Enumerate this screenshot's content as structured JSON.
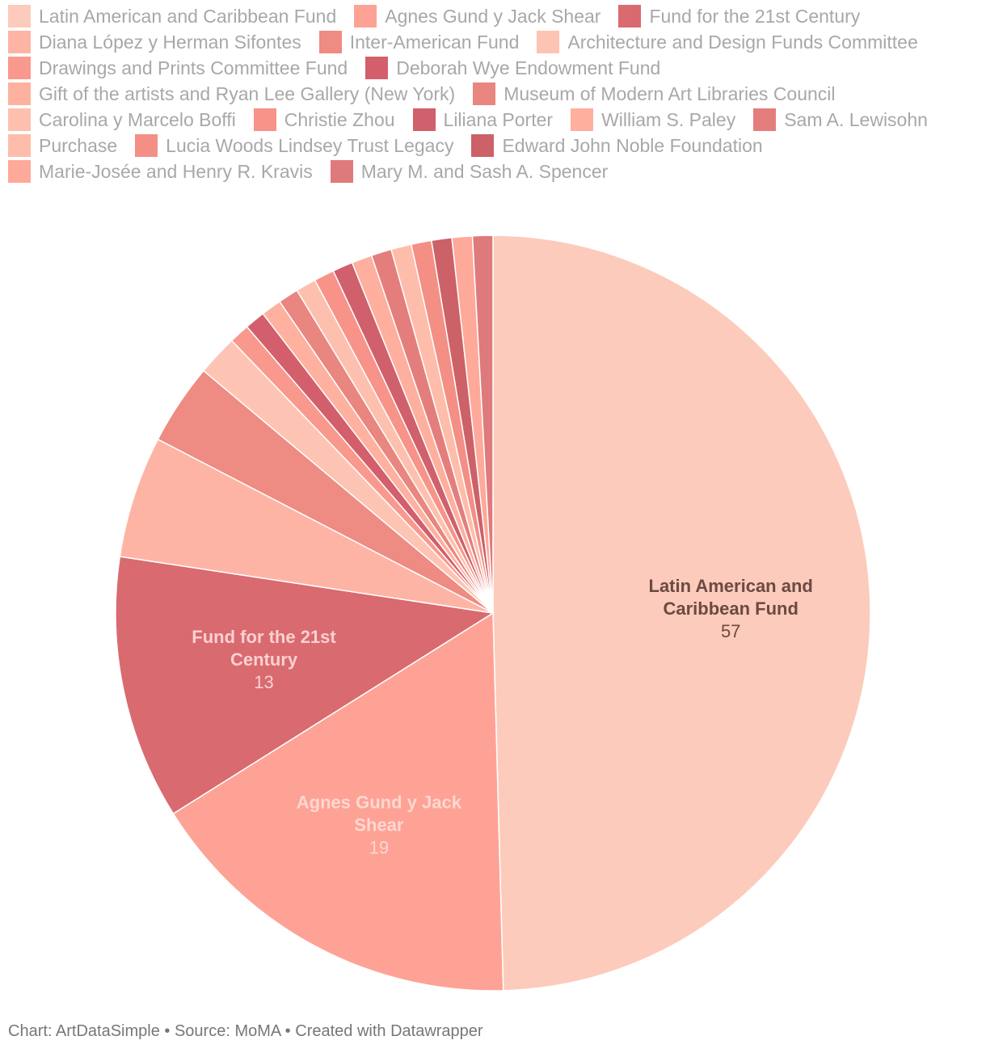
{
  "chart_data": {
    "type": "pie",
    "title": "",
    "slices": [
      {
        "name": "Latin American and Caribbean Fund",
        "value": 57,
        "color": "#fdcbbb"
      },
      {
        "name": "Agnes Gund y Jack Shear",
        "value": 19,
        "color": "#fea296"
      },
      {
        "name": "Fund for the 21st Century",
        "value": 13,
        "color": "#d96a70"
      },
      {
        "name": "Diana López y Herman Sifontes",
        "value": 6,
        "color": "#feb4a4"
      },
      {
        "name": "Inter-American Fund",
        "value": 4,
        "color": "#ee8b82"
      },
      {
        "name": "Architecture and Design Funds Committee",
        "value": 2,
        "color": "#fec4b3"
      },
      {
        "name": "Drawings and Prints Committee Fund",
        "value": 1,
        "color": "#f9998e"
      },
      {
        "name": "Deborah Wye Endowment Fund",
        "value": 1,
        "color": "#d35f6d"
      },
      {
        "name": "Gift of the artists and Ryan Lee Gallery (New York)",
        "value": 1,
        "color": "#feb19f"
      },
      {
        "name": "Museum of Modern Art Libraries Council",
        "value": 1,
        "color": "#e8867f"
      },
      {
        "name": "Carolina y Marcelo Boffi",
        "value": 1,
        "color": "#fec0ae"
      },
      {
        "name": "Christie Zhou",
        "value": 1,
        "color": "#f79389"
      },
      {
        "name": "Liliana Porter",
        "value": 1,
        "color": "#d0606b"
      },
      {
        "name": "William S. Paley",
        "value": 1,
        "color": "#feaf9e"
      },
      {
        "name": "Sam A. Lewisohn",
        "value": 1,
        "color": "#e47e7c"
      },
      {
        "name": "Purchase",
        "value": 1,
        "color": "#febdaa"
      },
      {
        "name": "Lucia Woods Lindsey Trust Legacy",
        "value": 1,
        "color": "#f48f86"
      },
      {
        "name": "Edward John Noble Foundation",
        "value": 1,
        "color": "#cc6168"
      },
      {
        "name": "Marie-Josée and Henry R. Kravis",
        "value": 1,
        "color": "#fea99a"
      },
      {
        "name": "Mary M. and Sash A. Spencer",
        "value": 1,
        "color": "#df7a7c"
      }
    ],
    "labeled_slices": [
      {
        "name_lines": [
          "Latin American and",
          "Caribbean Fund"
        ],
        "value": "57",
        "color": "#6b4a42"
      },
      {
        "name_lines": [
          "Agnes Gund y Jack",
          "Shear"
        ],
        "value": "19",
        "color": "#fdd8d0"
      },
      {
        "name_lines": [
          "Fund for the 21st",
          "Century"
        ],
        "value": "13",
        "color": "#fbd0d0"
      }
    ],
    "legend_position": "top"
  },
  "footer": {
    "text": "Chart: ArtDataSimple • Source: MoMA • Created with Datawrapper"
  }
}
